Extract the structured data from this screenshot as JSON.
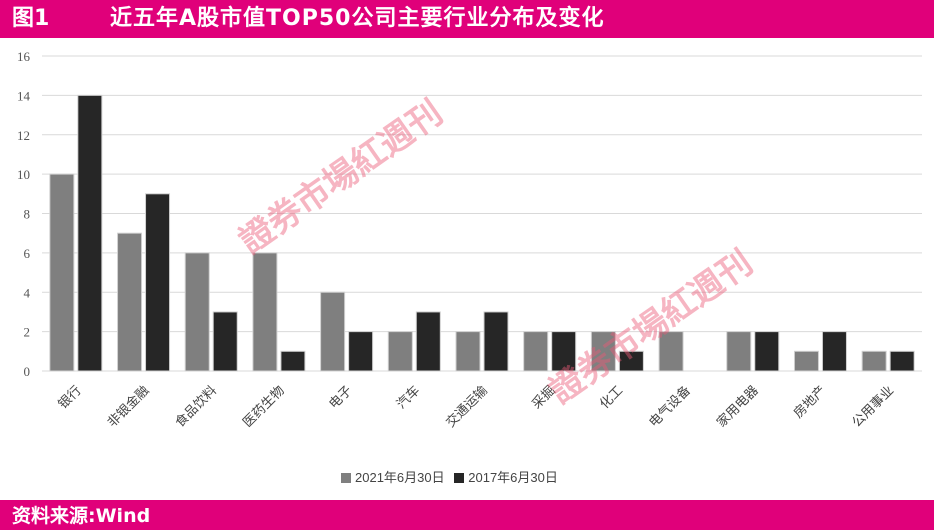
{
  "header": {
    "figure_no": "图1",
    "title": "近五年A股市值TOP50公司主要行业分布及变化"
  },
  "footer": {
    "source": "资料来源:Wind"
  },
  "watermark": "證券市場紅週刊",
  "colors": {
    "brand": "#e0007a",
    "series_2021": "#7f7f7f",
    "series_2017": "#262626"
  },
  "chart_data": {
    "type": "bar",
    "title": "",
    "xlabel": "",
    "ylabel": "",
    "ylim": [
      0,
      16
    ],
    "yticks": [
      0,
      2,
      4,
      6,
      8,
      10,
      12,
      14,
      16
    ],
    "grid": true,
    "legend_position": "bottom",
    "categories": [
      "银行",
      "非银金融",
      "食品饮料",
      "医药生物",
      "电子",
      "汽车",
      "交通运输",
      "采掘",
      "化工",
      "电气设备",
      "家用电器",
      "房地产",
      "公用事业"
    ],
    "series": [
      {
        "name": "2021年6月30日",
        "color": "#7f7f7f",
        "values": [
          10,
          7,
          6,
          6,
          4,
          2,
          2,
          2,
          2,
          2,
          2,
          1,
          1
        ]
      },
      {
        "name": "2017年6月30日",
        "color": "#262626",
        "values": [
          14,
          9,
          3,
          1,
          2,
          3,
          3,
          2,
          1,
          0,
          2,
          2,
          1
        ]
      }
    ]
  }
}
